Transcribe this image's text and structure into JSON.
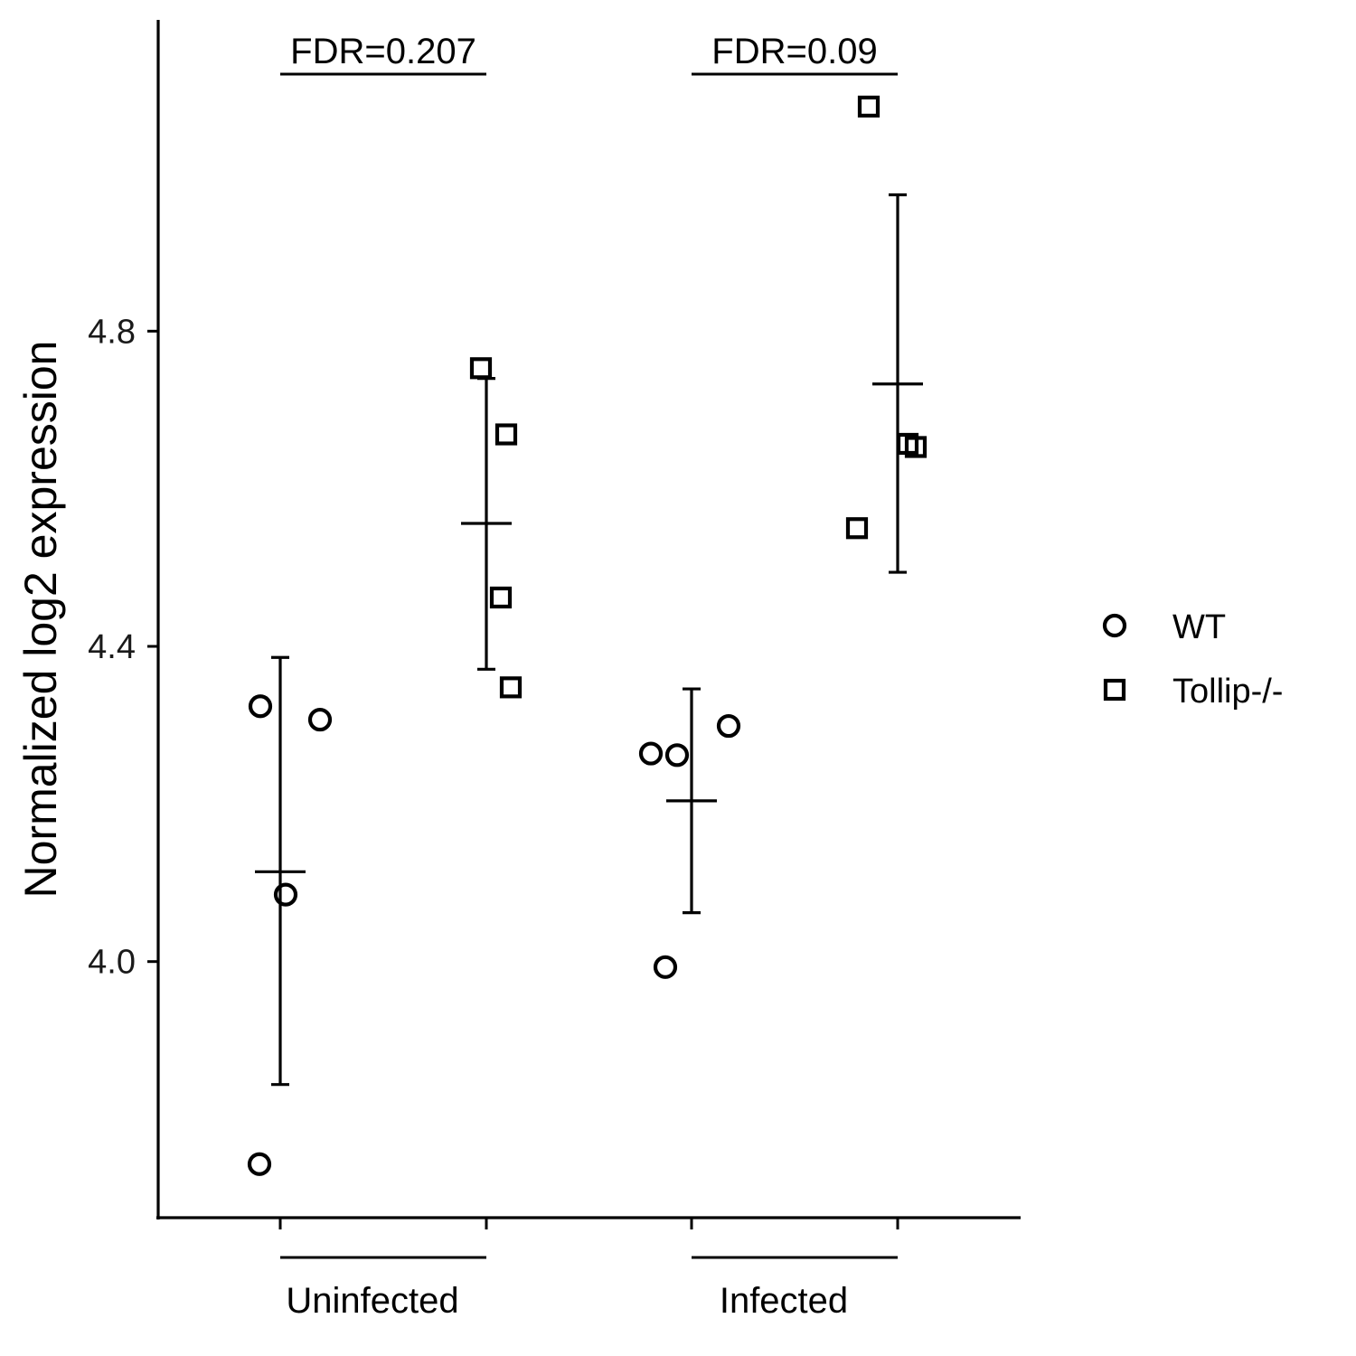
{
  "chart_data": {
    "type": "scatter",
    "title": "",
    "ylabel": "Normalized log2 expression",
    "xlabel": "",
    "ylim": [
      3.675,
      5.195
    ],
    "yticks": [
      4.0,
      4.4,
      4.8
    ],
    "ytick_labels": [
      "4.0",
      "4.4",
      "4.8"
    ],
    "grid": false,
    "legend_position": "right",
    "groups": [
      {
        "label": "Uninfected",
        "fdr_label": "FDR=0.207",
        "conditions": [
          {
            "series": "WT",
            "mean": 4.114,
            "error_low": 3.844,
            "error_high": 4.386,
            "points": [
              4.324,
              4.307,
              4.085,
              3.743
            ]
          },
          {
            "series": "Tollip-/-",
            "mean": 4.556,
            "error_low": 4.371,
            "error_high": 4.74,
            "points": [
              4.753,
              4.669,
              4.462,
              4.348
            ]
          }
        ]
      },
      {
        "label": "Infected",
        "fdr_label": "FDR=0.09",
        "conditions": [
          {
            "series": "WT",
            "mean": 4.204,
            "error_low": 4.062,
            "error_high": 4.346,
            "points": [
              4.264,
              4.262,
              4.299,
              3.993
            ]
          },
          {
            "series": "Tollip-/-",
            "mean": 4.733,
            "error_low": 4.494,
            "error_high": 4.973,
            "points": [
              5.085,
              4.657,
              4.653,
              4.55
            ]
          }
        ]
      }
    ],
    "series": [
      {
        "name": "WT",
        "marker": "circle-open"
      },
      {
        "name": "Tollip-/-",
        "marker": "square-open"
      }
    ],
    "colors": {
      "ink": "#000000",
      "background": "#ffffff"
    }
  }
}
